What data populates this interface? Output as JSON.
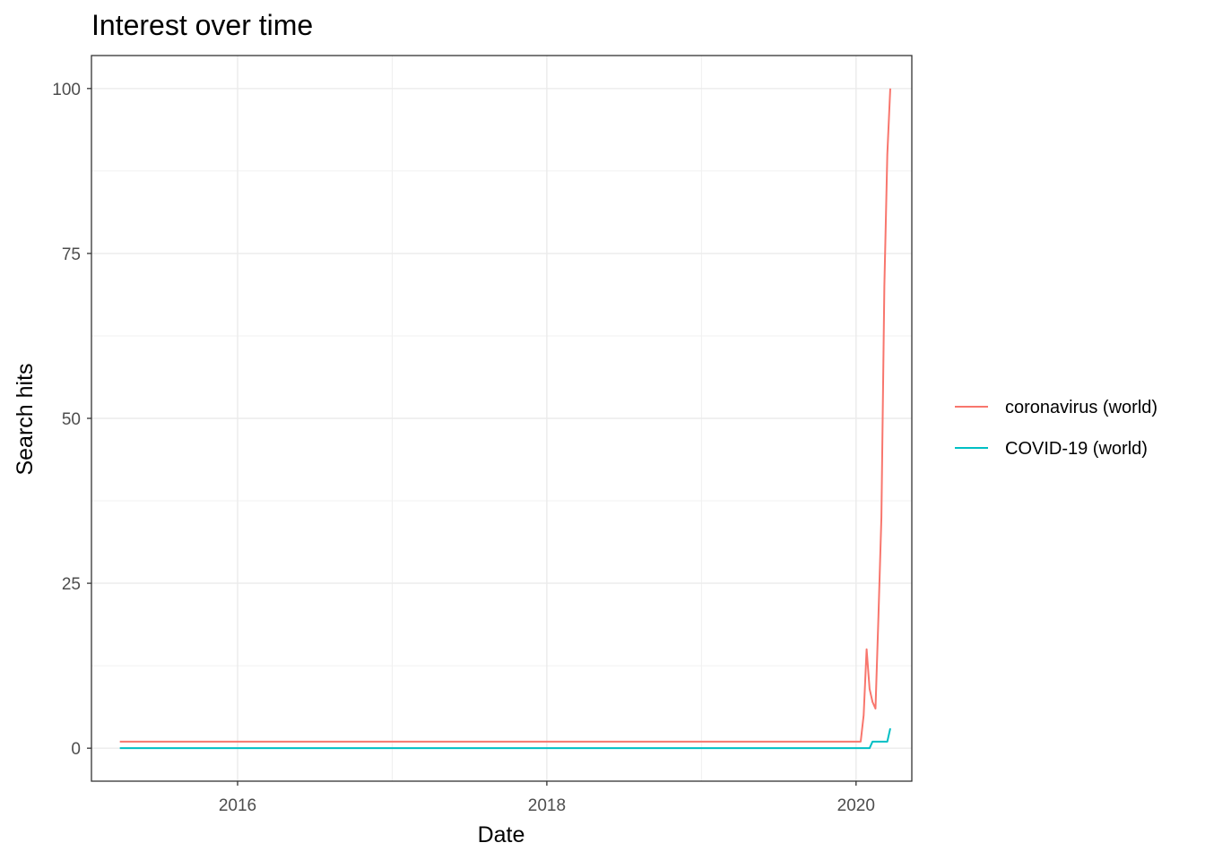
{
  "chart_data": {
    "type": "line",
    "title": "Interest over time",
    "xlabel": "Date",
    "ylabel": "Search hits",
    "x_ticks": [
      "2016",
      "2018",
      "2020"
    ],
    "y_ticks": [
      "0",
      "25",
      "50",
      "75",
      "100"
    ],
    "xlim": [
      "2015-01-21",
      "2020-05-12"
    ],
    "ylim": [
      -5,
      105
    ],
    "grid": true,
    "legend_position": "right",
    "series": [
      {
        "name": "coronavirus (world)",
        "color": "#F8766D",
        "points": [
          [
            "2015-03-29",
            1
          ],
          [
            "2016-01-03",
            1
          ],
          [
            "2017-01-01",
            1
          ],
          [
            "2018-01-07",
            1
          ],
          [
            "2019-01-06",
            1
          ],
          [
            "2019-12-29",
            1
          ],
          [
            "2020-01-12",
            1
          ],
          [
            "2020-01-19",
            5
          ],
          [
            "2020-01-26",
            15
          ],
          [
            "2020-02-02",
            9
          ],
          [
            "2020-02-09",
            7
          ],
          [
            "2020-02-16",
            6
          ],
          [
            "2020-02-23",
            20
          ],
          [
            "2020-03-01",
            35
          ],
          [
            "2020-03-08",
            70
          ],
          [
            "2020-03-15",
            90
          ],
          [
            "2020-03-22",
            100
          ]
        ]
      },
      {
        "name": "COVID-19 (world)",
        "color": "#00BFC4",
        "points": [
          [
            "2015-03-29",
            0
          ],
          [
            "2016-01-03",
            0
          ],
          [
            "2017-01-01",
            0
          ],
          [
            "2018-01-07",
            0
          ],
          [
            "2019-01-06",
            0
          ],
          [
            "2020-01-26",
            0
          ],
          [
            "2020-02-02",
            0
          ],
          [
            "2020-02-09",
            1
          ],
          [
            "2020-02-16",
            1
          ],
          [
            "2020-02-23",
            1
          ],
          [
            "2020-03-01",
            1
          ],
          [
            "2020-03-08",
            1
          ],
          [
            "2020-03-15",
            1
          ],
          [
            "2020-03-22",
            3
          ]
        ]
      }
    ]
  }
}
